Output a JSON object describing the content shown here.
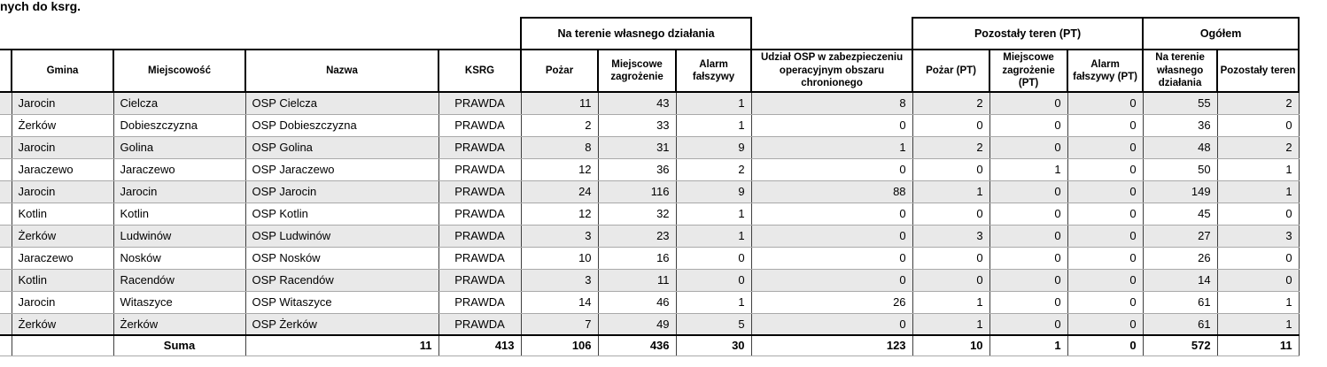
{
  "page_title": "nych do ksrg.",
  "table": {
    "groups": [
      {
        "label": "Na terenie własnego działania"
      },
      {
        "label": "Pozostały teren (PT)"
      },
      {
        "label": "Ogółem"
      }
    ],
    "columns": [
      {
        "key": "rownum",
        "label": ""
      },
      {
        "key": "gmina",
        "label": "Gmina"
      },
      {
        "key": "miejscowosc",
        "label": "Miejscowość"
      },
      {
        "key": "nazwa",
        "label": "Nazwa"
      },
      {
        "key": "ksrg",
        "label": "KSRG"
      },
      {
        "key": "pozar",
        "label": "Pożar"
      },
      {
        "key": "miejscowe-zagrozenie",
        "label": "Miejscowe zagrożenie"
      },
      {
        "key": "alarm-falszywy",
        "label": "Alarm fałszywy"
      },
      {
        "key": "udzial-osp",
        "label": "Udział OSP w zabezpieczeniu operacyjnym obszaru chronionego"
      },
      {
        "key": "pozar-pt",
        "label": "Pożar (PT)"
      },
      {
        "key": "miejscowe-zagrozenie-pt",
        "label": "Miejscowe zagrożenie (PT)"
      },
      {
        "key": "alarm-falszywy-pt",
        "label": "Alarm fałszywy (PT)"
      },
      {
        "key": "ogolem-wlasne",
        "label": "Na terenie własnego działania"
      },
      {
        "key": "ogolem-pozostaly",
        "label": "Pozostały teren"
      }
    ],
    "rows": [
      [
        "Jarocin",
        "Cielcza",
        "OSP Cielcza",
        "PRAWDA",
        "11",
        "43",
        "1",
        "8",
        "2",
        "0",
        "0",
        "55",
        "2"
      ],
      [
        "Żerków",
        "Dobieszczyzna",
        "OSP Dobieszczyzna",
        "PRAWDA",
        "2",
        "33",
        "1",
        "0",
        "0",
        "0",
        "0",
        "36",
        "0"
      ],
      [
        "Jarocin",
        "Golina",
        "OSP Golina",
        "PRAWDA",
        "8",
        "31",
        "9",
        "1",
        "2",
        "0",
        "0",
        "48",
        "2"
      ],
      [
        "Jaraczewo",
        "Jaraczewo",
        "OSP Jaraczewo",
        "PRAWDA",
        "12",
        "36",
        "2",
        "0",
        "0",
        "1",
        "0",
        "50",
        "1"
      ],
      [
        "Jarocin",
        "Jarocin",
        "OSP Jarocin",
        "PRAWDA",
        "24",
        "116",
        "9",
        "88",
        "1",
        "0",
        "0",
        "149",
        "1"
      ],
      [
        "Kotlin",
        "Kotlin",
        "OSP Kotlin",
        "PRAWDA",
        "12",
        "32",
        "1",
        "0",
        "0",
        "0",
        "0",
        "45",
        "0"
      ],
      [
        "Żerków",
        "Ludwinów",
        "OSP Ludwinów",
        "PRAWDA",
        "3",
        "23",
        "1",
        "0",
        "3",
        "0",
        "0",
        "27",
        "3"
      ],
      [
        "Jaraczewo",
        "Nosków",
        "OSP Nosków",
        "PRAWDA",
        "10",
        "16",
        "0",
        "0",
        "0",
        "0",
        "0",
        "26",
        "0"
      ],
      [
        "Kotlin",
        "Racendów",
        "OSP Racendów",
        "PRAWDA",
        "3",
        "11",
        "0",
        "0",
        "0",
        "0",
        "0",
        "14",
        "0"
      ],
      [
        "Jarocin",
        "Witaszyce",
        "OSP Witaszyce",
        "PRAWDA",
        "14",
        "46",
        "1",
        "26",
        "1",
        "0",
        "0",
        "61",
        "1"
      ],
      [
        "Żerków",
        "Żerków",
        "OSP Żerków",
        "PRAWDA",
        "7",
        "49",
        "5",
        "0",
        "1",
        "0",
        "0",
        "61",
        "1"
      ]
    ],
    "summary": {
      "label": "Suma",
      "values": [
        "11",
        "413",
        "106",
        "436",
        "30",
        "123",
        "10",
        "1",
        "0",
        "572",
        "11"
      ]
    }
  }
}
